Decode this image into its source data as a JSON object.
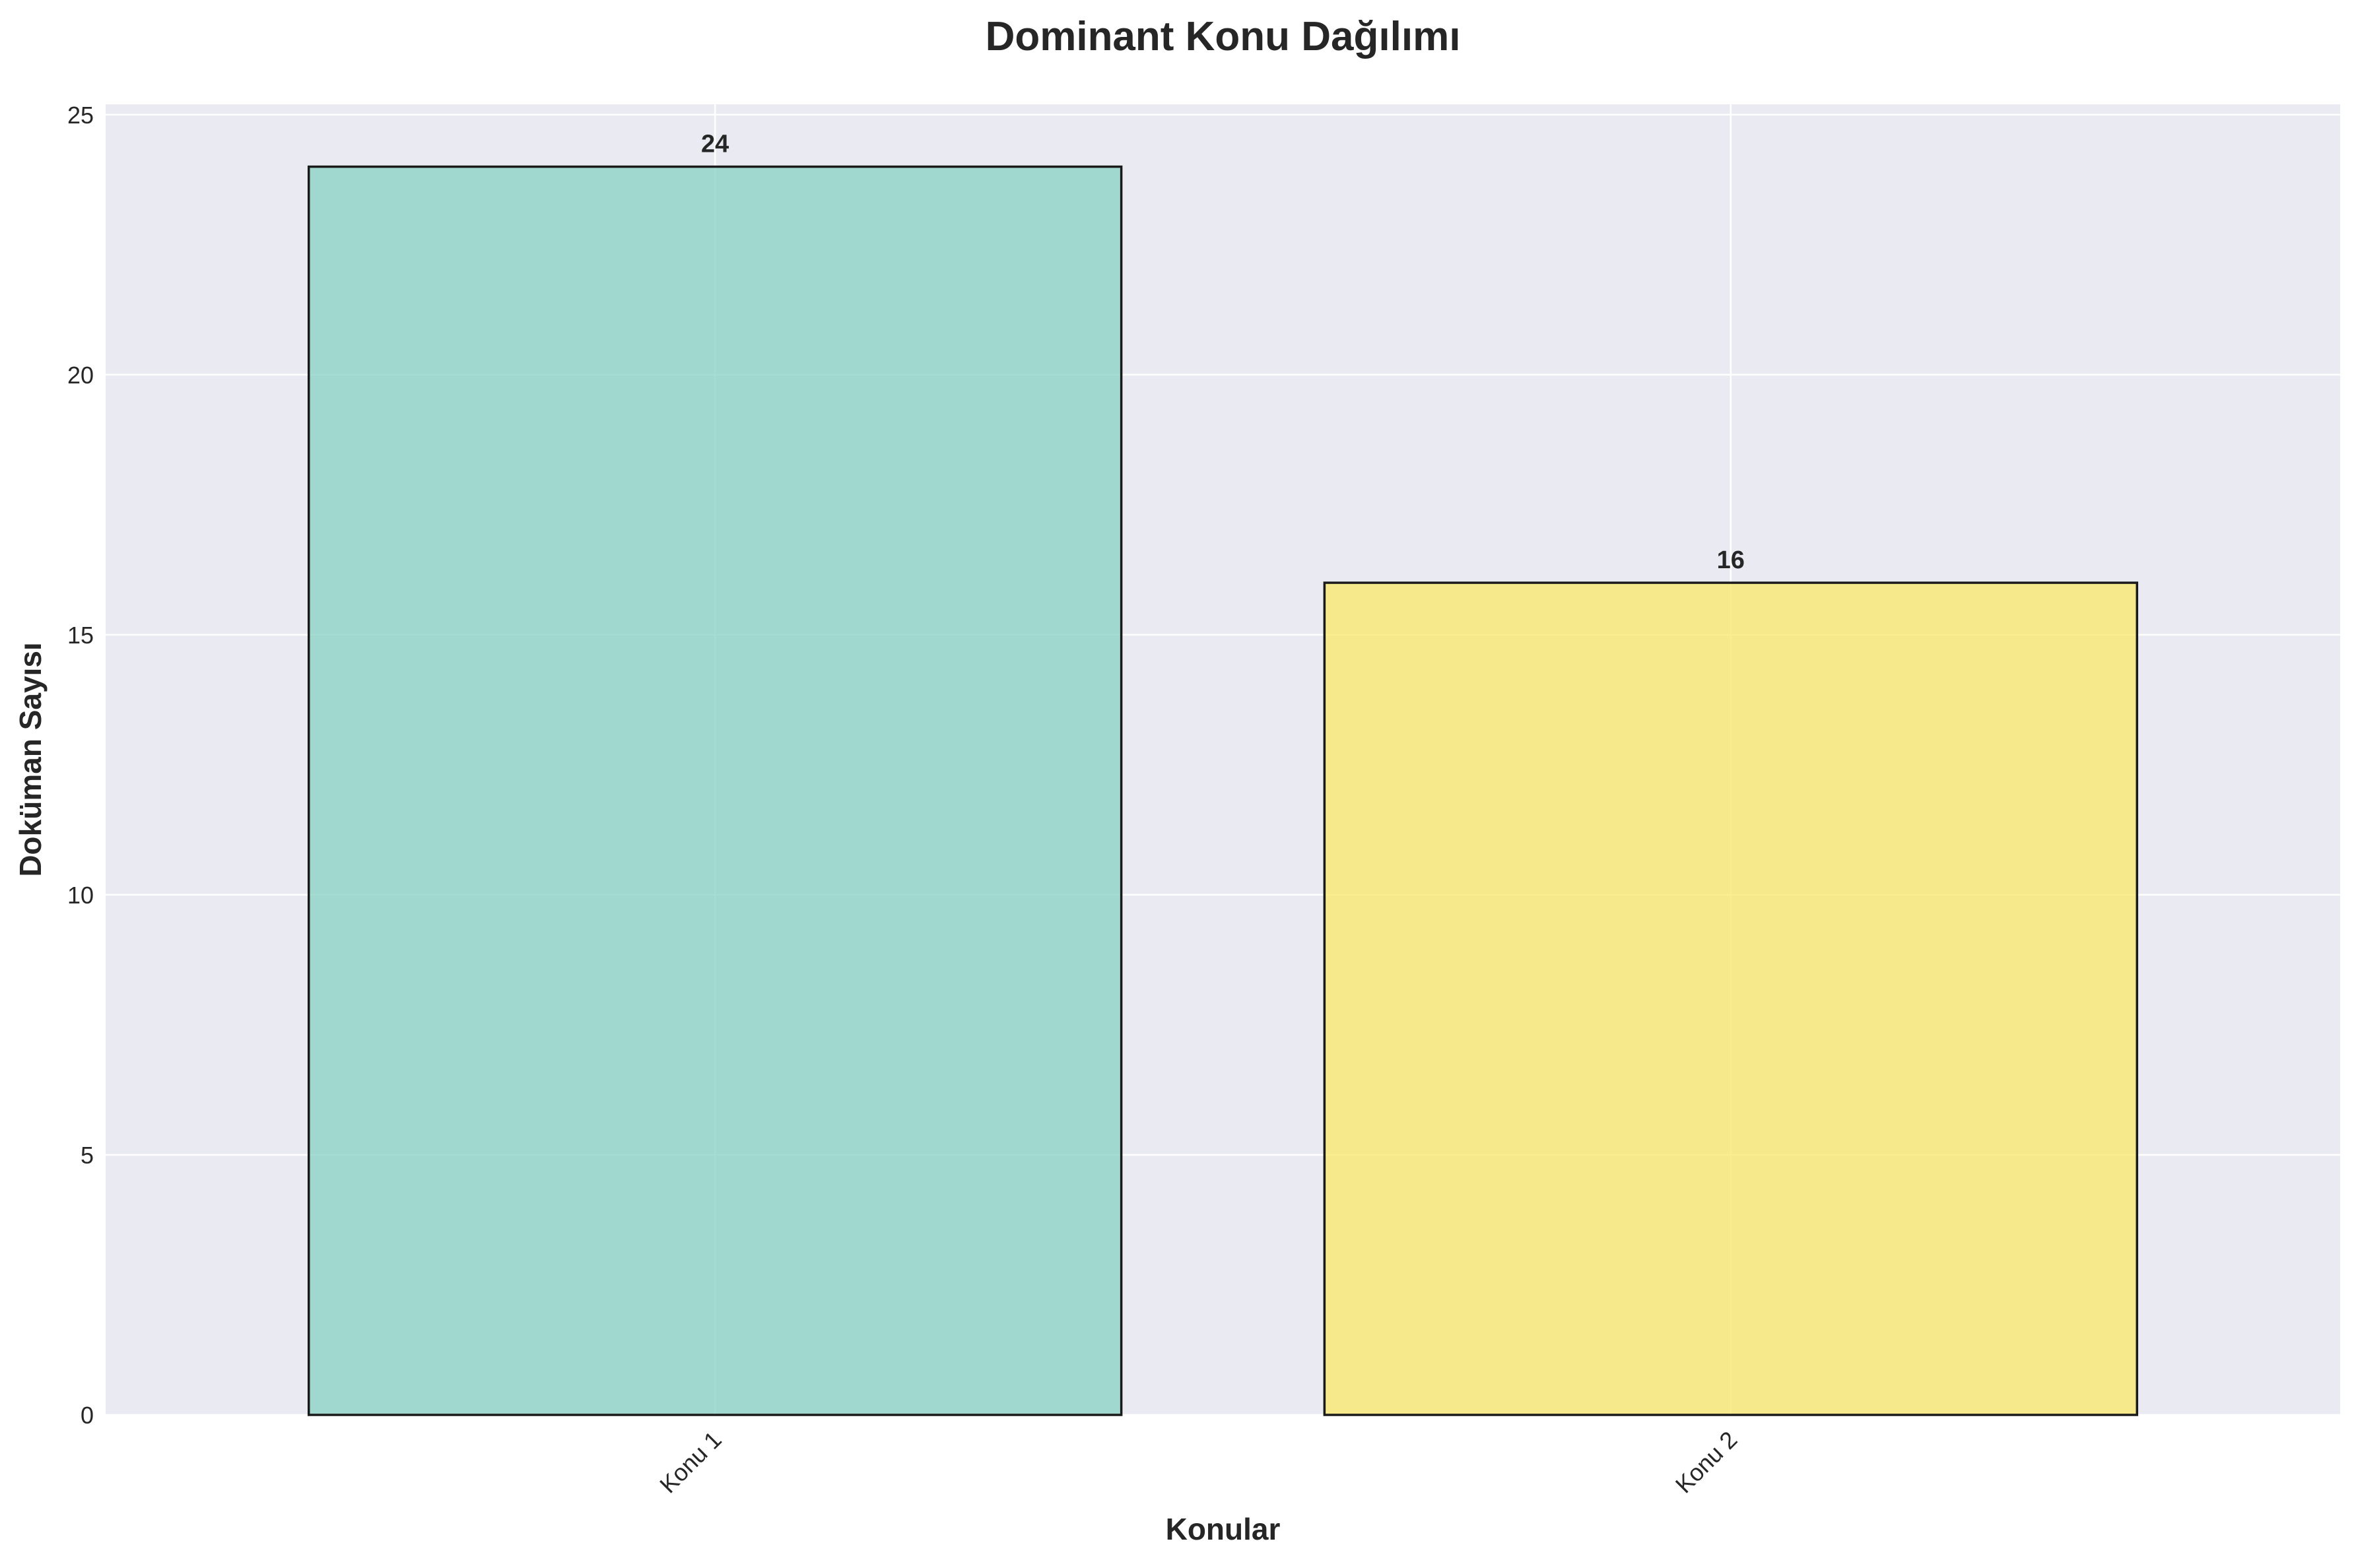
{
  "chart_data": {
    "type": "bar",
    "title": "Dominant Konu Dağılımı",
    "xlabel": "Konular",
    "ylabel": "Doküman Sayısı",
    "categories": [
      "Konu 1",
      "Konu 2"
    ],
    "values": [
      24,
      16
    ],
    "value_labels": [
      "24",
      "16"
    ],
    "ylim": [
      0,
      25.2
    ],
    "yticks": [
      0,
      5,
      10,
      15,
      20,
      25
    ],
    "ytick_labels": [
      "0",
      "5",
      "10",
      "15",
      "20",
      "25"
    ],
    "xtick_rotation": "45 degrees",
    "grid": true,
    "colors": {
      "bars": [
        "#8dd3c7",
        "#f9e871"
      ],
      "bar_edge": "#1a1a1a",
      "plot_background": "#eaeaf2",
      "grid": "#ffffff"
    }
  }
}
